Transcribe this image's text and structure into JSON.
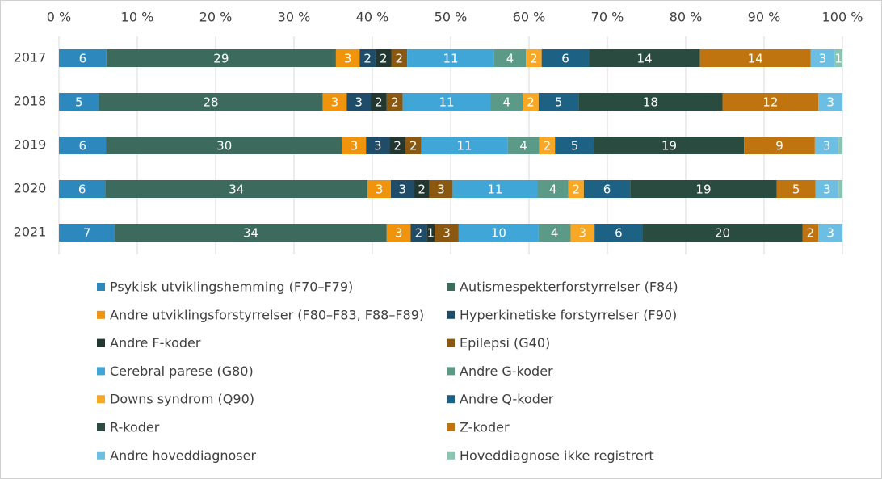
{
  "chart_data": {
    "type": "bar",
    "orientation": "horizontal",
    "stacked_percent": true,
    "categories": [
      "2017",
      "2018",
      "2019",
      "2020",
      "2021"
    ],
    "series": [
      {
        "name": "Psykisk utviklingshemming (F70–F79)",
        "color": "#2c88bd",
        "values": [
          6,
          5,
          6,
          6,
          7
        ]
      },
      {
        "name": "Autismespekterforstyrrelser (F84)",
        "color": "#3c6a5c",
        "values": [
          29,
          28,
          30,
          34,
          34
        ]
      },
      {
        "name": "Andre utviklingsforstyrrelser (F80–F83, F88–F89)",
        "color": "#f0940e",
        "values": [
          3,
          3,
          3,
          3,
          3
        ]
      },
      {
        "name": "Hyperkinetiske forstyrrelser (F90)",
        "color": "#1e4c69",
        "values": [
          2,
          3,
          3,
          3,
          2
        ]
      },
      {
        "name": "Andre F-koder",
        "color": "#22372f",
        "values": [
          2,
          2,
          2,
          2,
          1
        ]
      },
      {
        "name": "Epilepsi (G40)",
        "color": "#8a5810",
        "values": [
          2,
          2,
          2,
          3,
          3
        ]
      },
      {
        "name": "Cerebral parese (G80)",
        "color": "#40a6d8",
        "values": [
          11,
          11,
          11,
          11,
          10
        ]
      },
      {
        "name": "Andre G-koder",
        "color": "#5b9a87",
        "values": [
          4,
          4,
          4,
          4,
          4
        ]
      },
      {
        "name": "Downs syndrom (Q90)",
        "color": "#f8a825",
        "values": [
          2,
          2,
          2,
          2,
          3
        ]
      },
      {
        "name": "Andre Q-koder",
        "color": "#1d6285",
        "values": [
          6,
          5,
          5,
          6,
          6
        ]
      },
      {
        "name": "R-koder",
        "color": "#2a4b40",
        "values": [
          14,
          18,
          19,
          19,
          20
        ]
      },
      {
        "name": "Z-koder",
        "color": "#c07410",
        "values": [
          14,
          12,
          9,
          5,
          2
        ]
      },
      {
        "name": "Andre hoveddiagnoser",
        "color": "#6cbfe3",
        "values": [
          3,
          3,
          3,
          3,
          3
        ]
      },
      {
        "name": "Hoveddiagnose ikke registrert",
        "color": "#8ac3b0",
        "values": [
          1,
          null,
          0.5,
          0.5,
          null
        ]
      }
    ],
    "xlim": [
      0,
      100
    ],
    "xticks": [
      {
        "value": 0,
        "label": "0 %"
      },
      {
        "value": 10,
        "label": "10 %"
      },
      {
        "value": 20,
        "label": "20 %"
      },
      {
        "value": 30,
        "label": "30 %"
      },
      {
        "value": 40,
        "label": "40 %"
      },
      {
        "value": 50,
        "label": "50 %"
      },
      {
        "value": 60,
        "label": "60 %"
      },
      {
        "value": 70,
        "label": "70 %"
      },
      {
        "value": 80,
        "label": "80 %"
      },
      {
        "value": 90,
        "label": "90 %"
      },
      {
        "value": 100,
        "label": "100 %"
      }
    ],
    "grid": true
  }
}
